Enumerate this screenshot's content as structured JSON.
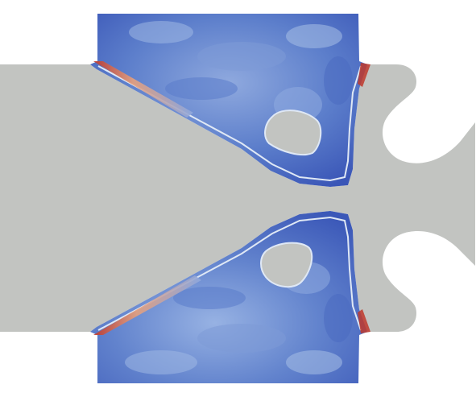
{
  "scene": {
    "colors": {
      "background": "#ffffff",
      "grey_part": "#c2c4c1",
      "field_low": "#3a56b7",
      "field_mid": "#6d8fd0",
      "field_light": "#9fb8e4",
      "field_high": "#c0382b",
      "field_hot": "#e7a07c",
      "boundary_line": "#dfe8f5"
    },
    "colormap": "blue-to-red",
    "parts": [
      "upper-domain-field",
      "lower-domain-field",
      "upper-inclusion",
      "lower-inclusion",
      "grey-part"
    ]
  }
}
